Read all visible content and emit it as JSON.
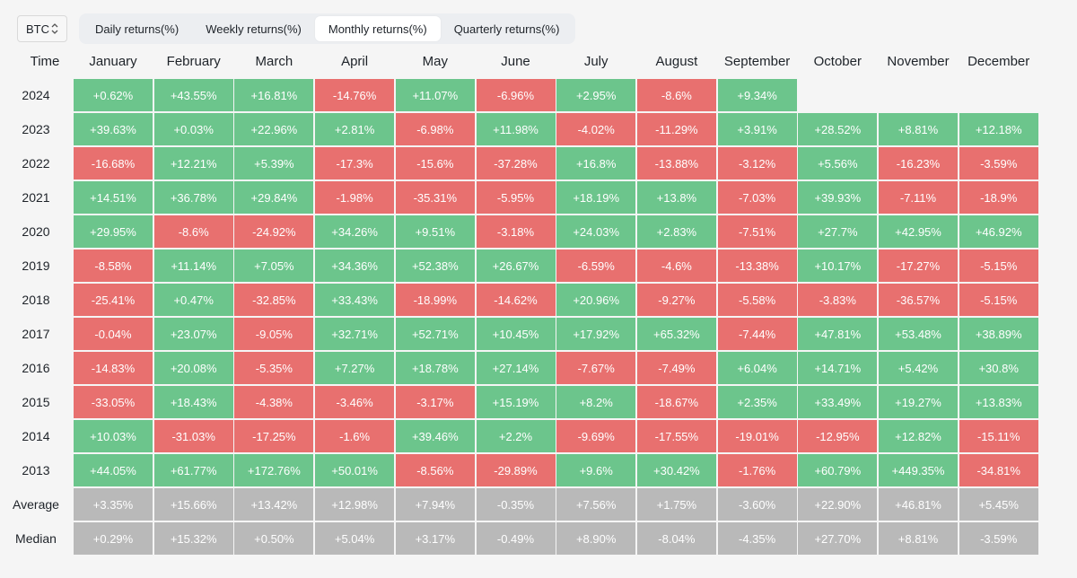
{
  "toolbar": {
    "asset": "BTC",
    "tabs": [
      {
        "label": "Daily returns(%)",
        "active": false
      },
      {
        "label": "Weekly returns(%)",
        "active": false
      },
      {
        "label": "Monthly returns(%)",
        "active": true
      },
      {
        "label": "Quarterly returns(%)",
        "active": false
      }
    ]
  },
  "colors": {
    "positive": "#6cc58c",
    "negative": "#e8706f",
    "summary": "#b9b9b9"
  },
  "chart_data": {
    "type": "heatmap",
    "corner_label": "Time",
    "columns": [
      "January",
      "February",
      "March",
      "April",
      "May",
      "June",
      "July",
      "August",
      "September",
      "October",
      "November",
      "December"
    ],
    "rows": [
      {
        "label": "2024",
        "kind": "year",
        "values": [
          "+0.62%",
          "+43.55%",
          "+16.81%",
          "-14.76%",
          "+11.07%",
          "-6.96%",
          "+2.95%",
          "-8.6%",
          "+9.34%",
          "",
          "",
          ""
        ]
      },
      {
        "label": "2023",
        "kind": "year",
        "values": [
          "+39.63%",
          "+0.03%",
          "+22.96%",
          "+2.81%",
          "-6.98%",
          "+11.98%",
          "-4.02%",
          "-11.29%",
          "+3.91%",
          "+28.52%",
          "+8.81%",
          "+12.18%"
        ]
      },
      {
        "label": "2022",
        "kind": "year",
        "values": [
          "-16.68%",
          "+12.21%",
          "+5.39%",
          "-17.3%",
          "-15.6%",
          "-37.28%",
          "+16.8%",
          "-13.88%",
          "-3.12%",
          "+5.56%",
          "-16.23%",
          "-3.59%"
        ]
      },
      {
        "label": "2021",
        "kind": "year",
        "values": [
          "+14.51%",
          "+36.78%",
          "+29.84%",
          "-1.98%",
          "-35.31%",
          "-5.95%",
          "+18.19%",
          "+13.8%",
          "-7.03%",
          "+39.93%",
          "-7.11%",
          "-18.9%"
        ]
      },
      {
        "label": "2020",
        "kind": "year",
        "values": [
          "+29.95%",
          "-8.6%",
          "-24.92%",
          "+34.26%",
          "+9.51%",
          "-3.18%",
          "+24.03%",
          "+2.83%",
          "-7.51%",
          "+27.7%",
          "+42.95%",
          "+46.92%"
        ]
      },
      {
        "label": "2019",
        "kind": "year",
        "values": [
          "-8.58%",
          "+11.14%",
          "+7.05%",
          "+34.36%",
          "+52.38%",
          "+26.67%",
          "-6.59%",
          "-4.6%",
          "-13.38%",
          "+10.17%",
          "-17.27%",
          "-5.15%"
        ]
      },
      {
        "label": "2018",
        "kind": "year",
        "values": [
          "-25.41%",
          "+0.47%",
          "-32.85%",
          "+33.43%",
          "-18.99%",
          "-14.62%",
          "+20.96%",
          "-9.27%",
          "-5.58%",
          "-3.83%",
          "-36.57%",
          "-5.15%"
        ]
      },
      {
        "label": "2017",
        "kind": "year",
        "values": [
          "-0.04%",
          "+23.07%",
          "-9.05%",
          "+32.71%",
          "+52.71%",
          "+10.45%",
          "+17.92%",
          "+65.32%",
          "-7.44%",
          "+47.81%",
          "+53.48%",
          "+38.89%"
        ]
      },
      {
        "label": "2016",
        "kind": "year",
        "values": [
          "-14.83%",
          "+20.08%",
          "-5.35%",
          "+7.27%",
          "+18.78%",
          "+27.14%",
          "-7.67%",
          "-7.49%",
          "+6.04%",
          "+14.71%",
          "+5.42%",
          "+30.8%"
        ]
      },
      {
        "label": "2015",
        "kind": "year",
        "values": [
          "-33.05%",
          "+18.43%",
          "-4.38%",
          "-3.46%",
          "-3.17%",
          "+15.19%",
          "+8.2%",
          "-18.67%",
          "+2.35%",
          "+33.49%",
          "+19.27%",
          "+13.83%"
        ]
      },
      {
        "label": "2014",
        "kind": "year",
        "values": [
          "+10.03%",
          "-31.03%",
          "-17.25%",
          "-1.6%",
          "+39.46%",
          "+2.2%",
          "-9.69%",
          "-17.55%",
          "-19.01%",
          "-12.95%",
          "+12.82%",
          "-15.11%"
        ]
      },
      {
        "label": "2013",
        "kind": "year",
        "values": [
          "+44.05%",
          "+61.77%",
          "+172.76%",
          "+50.01%",
          "-8.56%",
          "-29.89%",
          "+9.6%",
          "+30.42%",
          "-1.76%",
          "+60.79%",
          "+449.35%",
          "-34.81%"
        ]
      },
      {
        "label": "Average",
        "kind": "summary",
        "values": [
          "+3.35%",
          "+15.66%",
          "+13.42%",
          "+12.98%",
          "+7.94%",
          "-0.35%",
          "+7.56%",
          "+1.75%",
          "-3.60%",
          "+22.90%",
          "+46.81%",
          "+5.45%"
        ]
      },
      {
        "label": "Median",
        "kind": "summary",
        "values": [
          "+0.29%",
          "+15.32%",
          "+0.50%",
          "+5.04%",
          "+3.17%",
          "-0.49%",
          "+8.90%",
          "-8.04%",
          "-4.35%",
          "+27.70%",
          "+8.81%",
          "-3.59%"
        ]
      }
    ]
  }
}
